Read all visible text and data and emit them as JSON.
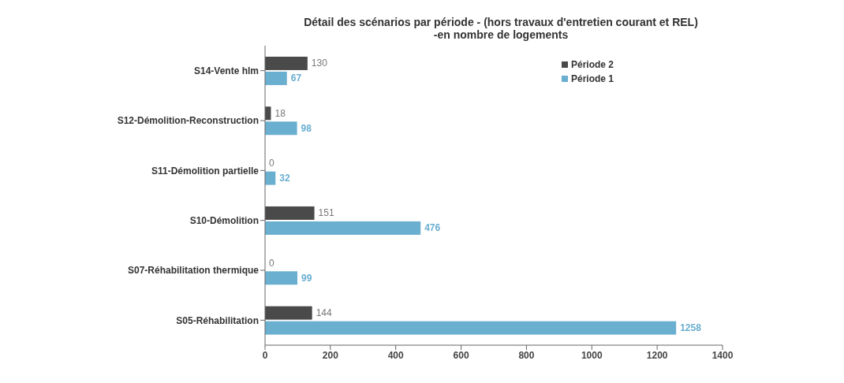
{
  "chart_data": {
    "type": "bar",
    "orientation": "horizontal",
    "title": "Détail des scénarios par période - (hors travaux d'entretien courant et REL)\n-en nombre de logements",
    "categories": [
      "S14-Vente hlm",
      "S12-Démolition-Reconstruction",
      "S11-Démolition partielle",
      "S10-Démolition",
      "S07-Réhabilitation thermique",
      "S05-Réhabilitation"
    ],
    "series": [
      {
        "name": "Période 2",
        "color": "#4a4a4a",
        "values": [
          130,
          18,
          0,
          151,
          0,
          144
        ]
      },
      {
        "name": "Période 1",
        "color": "#6aaed0",
        "values": [
          67,
          98,
          32,
          476,
          99,
          1258
        ]
      }
    ],
    "xlim": [
      0,
      1400
    ],
    "xticks": [
      0,
      200,
      400,
      600,
      800,
      1000,
      1200,
      1400
    ],
    "data_labels": true,
    "legend": "top right",
    "grid": false
  }
}
